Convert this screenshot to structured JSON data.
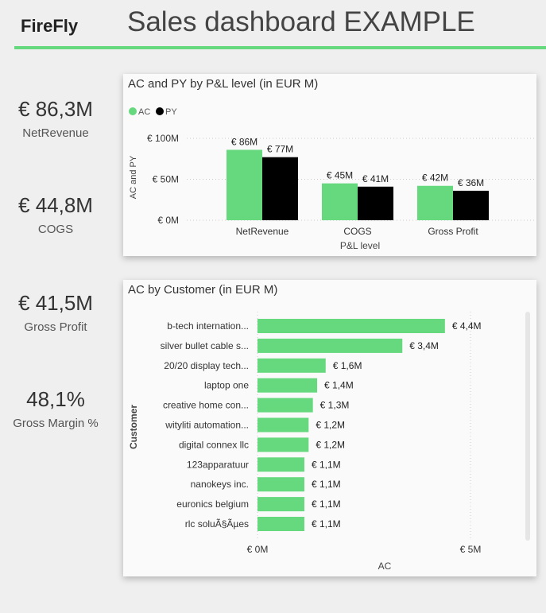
{
  "header": {
    "logo": "FireFly",
    "title": "Sales dashboard EXAMPLE",
    "accent": "#66d87e"
  },
  "kpis": [
    {
      "value": "€ 86,3M",
      "label": "NetRevenue"
    },
    {
      "value": "€ 44,8M",
      "label": "COGS"
    },
    {
      "value": "€ 41,5M",
      "label": "Gross Profit"
    },
    {
      "value": "48,1%",
      "label": "Gross Margin %"
    }
  ],
  "chart_data": [
    {
      "type": "bar",
      "title": "AC and PY by P&L level (in EUR M)",
      "xlabel": "P&L level",
      "ylabel": "AC and PY",
      "categories": [
        "NetRevenue",
        "COGS",
        "Gross Profit"
      ],
      "series": [
        {
          "name": "AC",
          "color": "#66d87e",
          "values": [
            86,
            45,
            42
          ],
          "labels": [
            "€ 86M",
            "€ 45M",
            "€ 42M"
          ]
        },
        {
          "name": "PY",
          "color": "#000000",
          "values": [
            77,
            41,
            36
          ],
          "labels": [
            "€ 77M",
            "€ 41M",
            "€ 36M"
          ]
        }
      ],
      "ylim": [
        0,
        100
      ],
      "yticks": [
        {
          "v": 100,
          "label": "€ 100M"
        },
        {
          "v": 50,
          "label": "€ 50M"
        },
        {
          "v": 0,
          "label": "€ 0M"
        }
      ],
      "legend": "top-left",
      "grid": true
    },
    {
      "type": "bar",
      "orientation": "horizontal",
      "title": "AC by Customer (in EUR M)",
      "xlabel": "AC",
      "ylabel": "Customer",
      "categories": [
        "b-tech internation...",
        "silver bullet cable s...",
        "20/20 display tech...",
        "laptop one",
        "creative home con...",
        "wityliti automation...",
        "digital connex llc",
        "123apparatuur",
        "nanokeys inc.",
        "euronics belgium",
        "rlc soluÃ§Ãµes"
      ],
      "values": [
        4.4,
        3.4,
        1.6,
        1.4,
        1.3,
        1.2,
        1.2,
        1.1,
        1.1,
        1.1,
        1.1
      ],
      "labels": [
        "€ 4,4M",
        "€ 3,4M",
        "€ 1,6M",
        "€ 1,4M",
        "€ 1,3M",
        "€ 1,2M",
        "€ 1,2M",
        "€ 1,1M",
        "€ 1,1M",
        "€ 1,1M",
        "€ 1,1M"
      ],
      "color": "#66d87e",
      "xlim": [
        0,
        5
      ],
      "xticks": [
        {
          "v": 0,
          "label": "€ 0M"
        },
        {
          "v": 5,
          "label": "€ 5M"
        }
      ],
      "grid": true
    }
  ]
}
